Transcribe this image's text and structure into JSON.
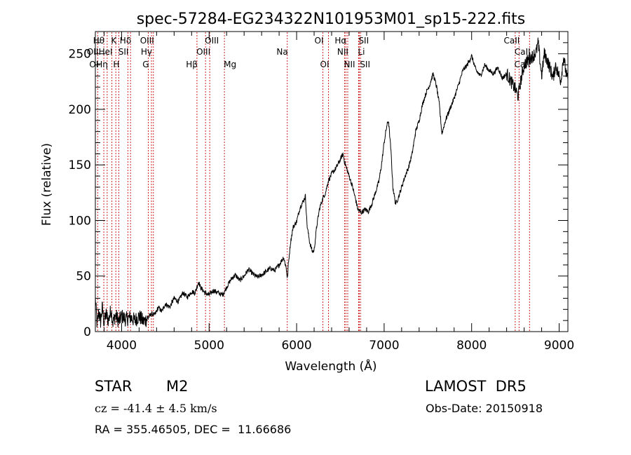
{
  "chart_data": {
    "type": "line",
    "title": "spec-57284-EG234322N101953M01_sp15-222.fits",
    "xlabel": "Wavelength (Å)",
    "ylabel": "Flux (relative)",
    "xlim": [
      3700,
      9100
    ],
    "ylim": [
      0,
      270
    ],
    "xticks": [
      4000,
      5000,
      6000,
      7000,
      8000,
      9000
    ],
    "yticks": [
      0,
      50,
      100,
      150,
      200,
      250
    ],
    "grid": false,
    "legend": "none",
    "line_color": "#000000",
    "marker_line_color": "#cc2222",
    "series_points": [
      [
        3700,
        30
      ],
      [
        3720,
        6
      ],
      [
        3740,
        18
      ],
      [
        3760,
        9
      ],
      [
        3780,
        22
      ],
      [
        3800,
        7
      ],
      [
        3820,
        16
      ],
      [
        3850,
        10
      ],
      [
        3880,
        20
      ],
      [
        3900,
        8
      ],
      [
        3930,
        15
      ],
      [
        3970,
        9
      ],
      [
        4000,
        14
      ],
      [
        4050,
        11
      ],
      [
        4100,
        13
      ],
      [
        4150,
        10
      ],
      [
        4200,
        14
      ],
      [
        4250,
        9
      ],
      [
        4300,
        12
      ],
      [
        4340,
        16
      ],
      [
        4380,
        15
      ],
      [
        4420,
        22
      ],
      [
        4460,
        18
      ],
      [
        4500,
        25
      ],
      [
        4550,
        22
      ],
      [
        4600,
        30
      ],
      [
        4650,
        27
      ],
      [
        4700,
        35
      ],
      [
        4750,
        31
      ],
      [
        4800,
        36
      ],
      [
        4840,
        35
      ],
      [
        4860,
        40
      ],
      [
        4880,
        45
      ],
      [
        4900,
        40
      ],
      [
        4950,
        35
      ],
      [
        5000,
        33
      ],
      [
        5050,
        37
      ],
      [
        5100,
        35
      ],
      [
        5150,
        33
      ],
      [
        5170,
        35
      ],
      [
        5200,
        40
      ],
      [
        5250,
        47
      ],
      [
        5300,
        51
      ],
      [
        5350,
        46
      ],
      [
        5400,
        50
      ],
      [
        5450,
        56
      ],
      [
        5500,
        52
      ],
      [
        5550,
        49
      ],
      [
        5600,
        51
      ],
      [
        5650,
        54
      ],
      [
        5700,
        57
      ],
      [
        5750,
        55
      ],
      [
        5800,
        60
      ],
      [
        5850,
        67
      ],
      [
        5880,
        58
      ],
      [
        5895,
        47
      ],
      [
        5905,
        60
      ],
      [
        5930,
        80
      ],
      [
        5960,
        94
      ],
      [
        6000,
        99
      ],
      [
        6040,
        112
      ],
      [
        6080,
        118
      ],
      [
        6100,
        122
      ],
      [
        6120,
        95
      ],
      [
        6150,
        80
      ],
      [
        6180,
        72
      ],
      [
        6200,
        73
      ],
      [
        6230,
        95
      ],
      [
        6260,
        110
      ],
      [
        6300,
        120
      ],
      [
        6330,
        125
      ],
      [
        6360,
        135
      ],
      [
        6400,
        142
      ],
      [
        6450,
        147
      ],
      [
        6500,
        155
      ],
      [
        6530,
        160
      ],
      [
        6550,
        152
      ],
      [
        6600,
        140
      ],
      [
        6640,
        130
      ],
      [
        6680,
        117
      ],
      [
        6700,
        110
      ],
      [
        6740,
        107
      ],
      [
        6780,
        110
      ],
      [
        6820,
        108
      ],
      [
        6860,
        115
      ],
      [
        6900,
        125
      ],
      [
        6940,
        135
      ],
      [
        6970,
        150
      ],
      [
        7000,
        170
      ],
      [
        7030,
        185
      ],
      [
        7050,
        190
      ],
      [
        7080,
        160
      ],
      [
        7100,
        130
      ],
      [
        7130,
        115
      ],
      [
        7160,
        120
      ],
      [
        7200,
        130
      ],
      [
        7240,
        140
      ],
      [
        7280,
        148
      ],
      [
        7320,
        160
      ],
      [
        7360,
        180
      ],
      [
        7400,
        190
      ],
      [
        7440,
        205
      ],
      [
        7480,
        215
      ],
      [
        7520,
        222
      ],
      [
        7560,
        232
      ],
      [
        7600,
        220
      ],
      [
        7630,
        205
      ],
      [
        7660,
        178
      ],
      [
        7700,
        190
      ],
      [
        7750,
        200
      ],
      [
        7800,
        210
      ],
      [
        7850,
        222
      ],
      [
        7900,
        235
      ],
      [
        7950,
        240
      ],
      [
        8000,
        248
      ],
      [
        8050,
        235
      ],
      [
        8100,
        230
      ],
      [
        8150,
        240
      ],
      [
        8200,
        235
      ],
      [
        8250,
        232
      ],
      [
        8300,
        238
      ],
      [
        8350,
        228
      ],
      [
        8400,
        232
      ],
      [
        8450,
        225
      ],
      [
        8500,
        218
      ],
      [
        8530,
        212
      ],
      [
        8560,
        225
      ],
      [
        8600,
        240
      ],
      [
        8650,
        245
      ],
      [
        8700,
        248
      ],
      [
        8740,
        252
      ],
      [
        8760,
        260
      ],
      [
        8780,
        245
      ],
      [
        8800,
        230
      ],
      [
        8830,
        250
      ],
      [
        8860,
        245
      ],
      [
        8900,
        236
      ],
      [
        8930,
        228
      ],
      [
        8960,
        240
      ],
      [
        8990,
        232
      ],
      [
        9020,
        226
      ],
      [
        9050,
        248
      ],
      [
        9080,
        232
      ],
      [
        9100,
        225
      ]
    ],
    "line_markers": [
      {
        "label": "Hθ",
        "x": 3797,
        "row": 0,
        "align": "right"
      },
      {
        "label": "K",
        "x": 3934,
        "row": 0,
        "align": "right"
      },
      {
        "label": "Hδ",
        "x": 4102,
        "row": 0,
        "align": "right"
      },
      {
        "label": "OIII",
        "x": 4363,
        "row": 0,
        "align": "right"
      },
      {
        "label": "OIII",
        "x": 4959,
        "row": 0,
        "align": "left"
      },
      {
        "label": "OI",
        "x": 6300,
        "row": 0,
        "align": "right"
      },
      {
        "label": "Hα",
        "x": 6563,
        "row": 0,
        "align": "right"
      },
      {
        "label": "SII",
        "x": 6716,
        "row": 0,
        "align": "left"
      },
      {
        "label": "CaII",
        "x": 8542,
        "row": 0,
        "align": "right"
      },
      {
        "label": "OII",
        "x": 3727,
        "row": 1,
        "align": "right"
      },
      {
        "label": "HeI",
        "x": 3889,
        "row": 1,
        "align": "right"
      },
      {
        "label": "SII",
        "x": 4072,
        "row": 1,
        "align": "right"
      },
      {
        "label": "Hγ",
        "x": 4341,
        "row": 1,
        "align": "right"
      },
      {
        "label": "OIII",
        "x": 5007,
        "row": 1,
        "align": "right"
      },
      {
        "label": "Na",
        "x": 5893,
        "row": 1,
        "align": "right"
      },
      {
        "label": "NII",
        "x": 6584,
        "row": 1,
        "align": "right"
      },
      {
        "label": "Li",
        "x": 6708,
        "row": 1,
        "align": "left"
      },
      {
        "label": "CaII",
        "x": 8498,
        "row": 1,
        "align": "left"
      },
      {
        "label": "OI",
        "x": 3727,
        "row": 2,
        "align": "right"
      },
      {
        "label": "Hη",
        "x": 3835,
        "row": 2,
        "align": "right"
      },
      {
        "label": "H",
        "x": 3968,
        "row": 2,
        "align": "right"
      },
      {
        "label": "G",
        "x": 4305,
        "row": 2,
        "align": "right"
      },
      {
        "label": "Hβ",
        "x": 4861,
        "row": 2,
        "align": "right"
      },
      {
        "label": "Mg",
        "x": 5175,
        "row": 2,
        "align": "left"
      },
      {
        "label": "OI",
        "x": 6364,
        "row": 2,
        "align": "right"
      },
      {
        "label": "NII",
        "x": 6548,
        "row": 2,
        "align": "left"
      },
      {
        "label": "SII",
        "x": 6731,
        "row": 2,
        "align": "left"
      },
      {
        "label": "CaII",
        "x": 8662,
        "row": 2,
        "align": "right"
      }
    ]
  },
  "info": {
    "class_label": "STAR",
    "subclass": "M2",
    "survey": "LAMOST  DR5",
    "cz": "cz = -41.4 ± 4.5 km/s",
    "obs_date": "Obs-Date: 20150918",
    "coords": "RA = 355.46505, DEC =  11.66686"
  }
}
